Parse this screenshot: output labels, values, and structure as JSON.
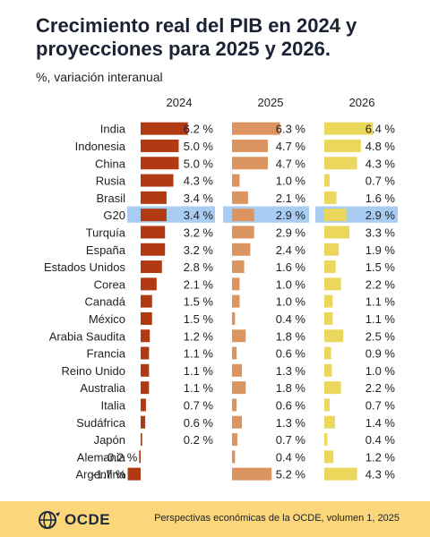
{
  "header": {
    "title": "Crecimiento real del PIB en 2024 y proyecciones para 2025 y 2026.",
    "subtitle": "%, variación interanual"
  },
  "footer": {
    "logo_text": "OCDE",
    "source": "Perspectivas económicas de la OCDE, volumen 1, 2025"
  },
  "colors": {
    "y2024": "#b23a12",
    "y2025": "#dc9560",
    "y2026": "#ecd75d",
    "highlight": "#a9cdf2",
    "footer_bg": "#fbd67a"
  },
  "chart_data": {
    "type": "bar",
    "orientation": "horizontal",
    "unit_suffix": " %",
    "highlight_category": "G20",
    "categories": [
      "India",
      "Indonesia",
      "China",
      "Rusia",
      "Brasil",
      "G20",
      "Turquía",
      "España",
      "Estados Unidos",
      "Corea",
      "Canadá",
      "México",
      "Arabia Saudita",
      "Francia",
      "Reino Unido",
      "Australia",
      "Italia",
      "Sudáfrica",
      "Japón",
      "Alemania",
      "Argentina"
    ],
    "series": [
      {
        "name": "2024",
        "values": [
          6.2,
          5.0,
          5.0,
          4.3,
          3.4,
          3.4,
          3.2,
          3.2,
          2.8,
          2.1,
          1.5,
          1.5,
          1.2,
          1.1,
          1.1,
          1.1,
          0.7,
          0.6,
          0.2,
          -0.2,
          -1.7
        ]
      },
      {
        "name": "2025",
        "values": [
          6.3,
          4.7,
          4.7,
          1.0,
          2.1,
          2.9,
          2.9,
          2.4,
          1.6,
          1.0,
          1.0,
          0.4,
          1.8,
          0.6,
          1.3,
          1.8,
          0.6,
          1.3,
          0.7,
          0.4,
          5.2
        ]
      },
      {
        "name": "2026",
        "values": [
          6.4,
          4.8,
          4.3,
          0.7,
          1.6,
          2.9,
          3.3,
          1.9,
          1.5,
          2.2,
          1.1,
          1.1,
          2.5,
          0.9,
          1.0,
          2.2,
          0.7,
          1.4,
          0.4,
          1.2,
          4.3
        ]
      }
    ]
  }
}
